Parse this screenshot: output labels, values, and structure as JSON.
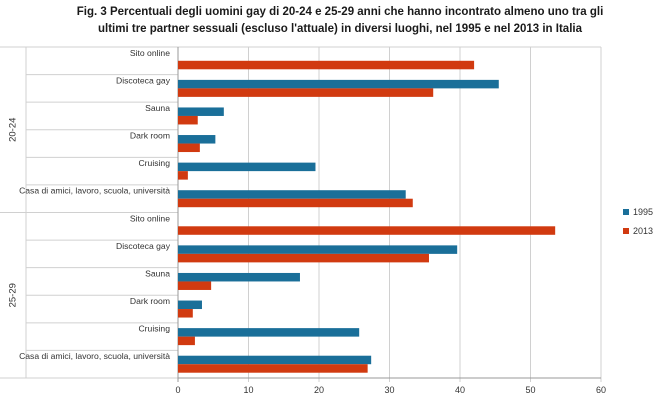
{
  "title": {
    "line1": "Fig. 3  Percentuali degli uomini gay di 20-24 e 25-29 anni che hanno incontrato almeno uno tra gli",
    "line2": "ultimi tre partner sessuali (escluso l'attuale) in diversi luoghi, nel 1995 e nel 2013 in Italia"
  },
  "colors": {
    "s1995": "#1a6f99",
    "s2013": "#d13a10",
    "grid": "#d0d0d0",
    "axis": "#999999",
    "text": "#333333"
  },
  "chart_data": {
    "type": "bar",
    "orientation": "horizontal",
    "groups": [
      {
        "label": "20-24",
        "categories": [
          "Sito online",
          "Discoteca gay",
          "Sauna",
          "Dark room",
          "Cruising",
          "Casa di amici, lavoro, scuola, università"
        ],
        "series": [
          {
            "name": "1995",
            "values": [
              0,
              45.5,
              6.5,
              5.3,
              19.5,
              32.3
            ]
          },
          {
            "name": "2013",
            "values": [
              42,
              36.2,
              2.8,
              3.1,
              1.4,
              33.3
            ]
          }
        ]
      },
      {
        "label": "25-29",
        "categories": [
          "Sito online",
          "Discoteca gay",
          "Sauna",
          "Dark room",
          "Cruising",
          "Casa di amici, lavoro, scuola, università"
        ],
        "series": [
          {
            "name": "1995",
            "values": [
              0,
              39.6,
              17.3,
              3.4,
              25.7,
              27.4
            ]
          },
          {
            "name": "2013",
            "values": [
              53.5,
              35.6,
              4.7,
              2.1,
              2.4,
              26.9
            ]
          }
        ]
      }
    ],
    "xlim": [
      0,
      60
    ],
    "xticks": [
      "0",
      "10",
      "20",
      "30",
      "40",
      "50",
      "60"
    ],
    "legend": [
      "1995",
      "2013"
    ],
    "legend_position": "right",
    "grid": true
  }
}
